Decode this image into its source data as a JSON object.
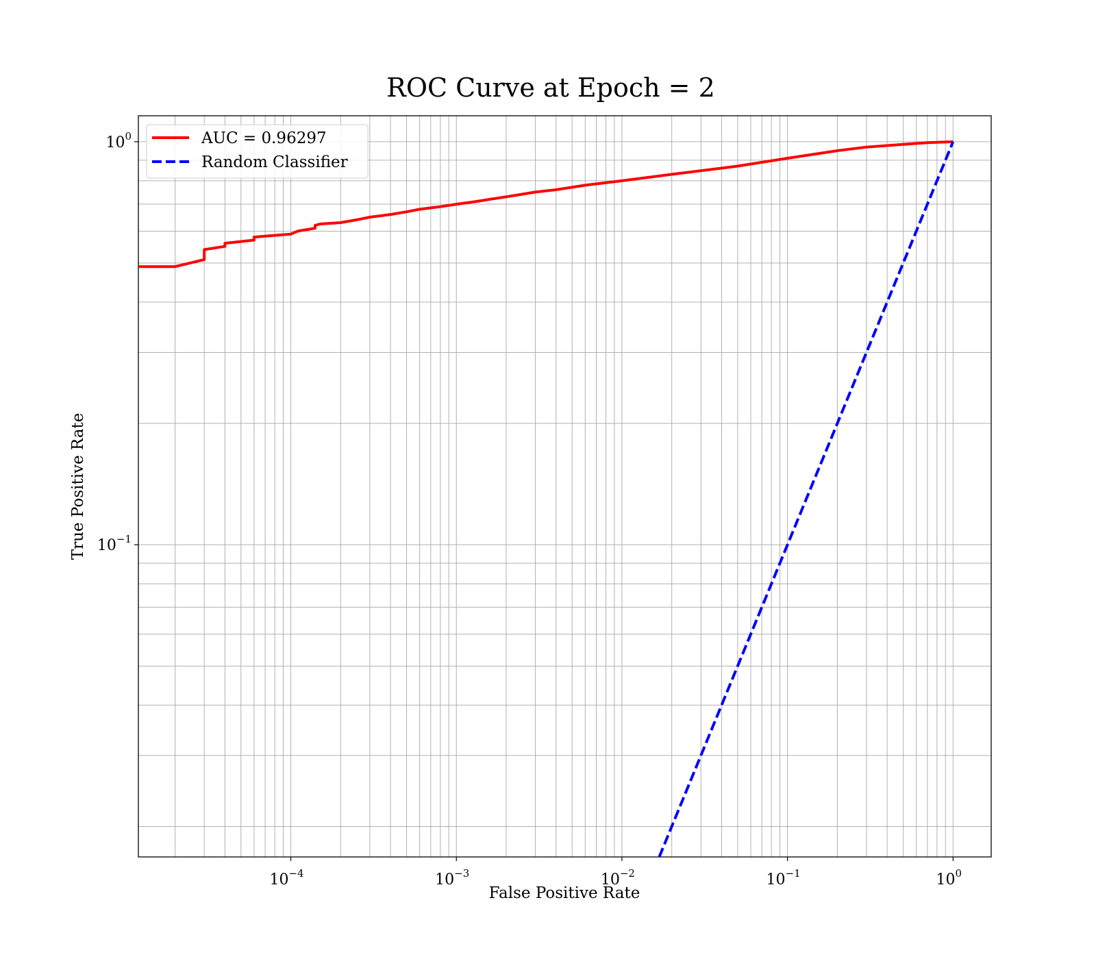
{
  "chart_data": {
    "type": "line",
    "title": "ROC Curve at Epoch = 2",
    "xlabel": "False Positive Rate",
    "ylabel": "True Positive Rate",
    "xscale": "log",
    "yscale": "log",
    "xlim": [
      1.2e-05,
      1.7
    ],
    "ylim": [
      0.0168,
      1.16
    ],
    "grid": true,
    "legend_position": "top-left",
    "x_ticks": [
      {
        "value": 0.0001,
        "base": "10",
        "exp": "−4"
      },
      {
        "value": 0.001,
        "base": "10",
        "exp": "−3"
      },
      {
        "value": 0.01,
        "base": "10",
        "exp": "−2"
      },
      {
        "value": 0.1,
        "base": "10",
        "exp": "−1"
      },
      {
        "value": 1,
        "base": "10",
        "exp": "0"
      }
    ],
    "y_ticks": [
      {
        "value": 0.1,
        "base": "10",
        "exp": "−1"
      },
      {
        "value": 1,
        "base": "10",
        "exp": "0"
      }
    ],
    "series": [
      {
        "name": "AUC = 0.96297",
        "color": "#ff0000",
        "style": "solid",
        "x": [
          1.2e-05,
          2e-05,
          3e-05,
          3e-05,
          4e-05,
          4e-05,
          6e-05,
          6e-05,
          0.0001,
          0.00011,
          0.00014,
          0.00014,
          0.00015,
          0.0002,
          0.00025,
          0.0003,
          0.0004,
          0.0005,
          0.0006,
          0.0008,
          0.001,
          0.0013,
          0.0016,
          0.002,
          0.003,
          0.004,
          0.006,
          0.01,
          0.02,
          0.05,
          0.1,
          0.2,
          0.3,
          0.5,
          0.7,
          1.0
        ],
        "y": [
          0.49,
          0.49,
          0.51,
          0.54,
          0.55,
          0.56,
          0.57,
          0.58,
          0.59,
          0.6,
          0.61,
          0.62,
          0.625,
          0.63,
          0.64,
          0.65,
          0.66,
          0.67,
          0.68,
          0.69,
          0.7,
          0.71,
          0.72,
          0.73,
          0.75,
          0.76,
          0.78,
          0.8,
          0.83,
          0.87,
          0.91,
          0.95,
          0.97,
          0.985,
          0.995,
          1.0
        ]
      },
      {
        "name": "Random Classifier",
        "color": "#0000ff",
        "style": "dashed",
        "x": [
          0.0168,
          1.0
        ],
        "y": [
          0.0168,
          1.0
        ]
      }
    ]
  }
}
